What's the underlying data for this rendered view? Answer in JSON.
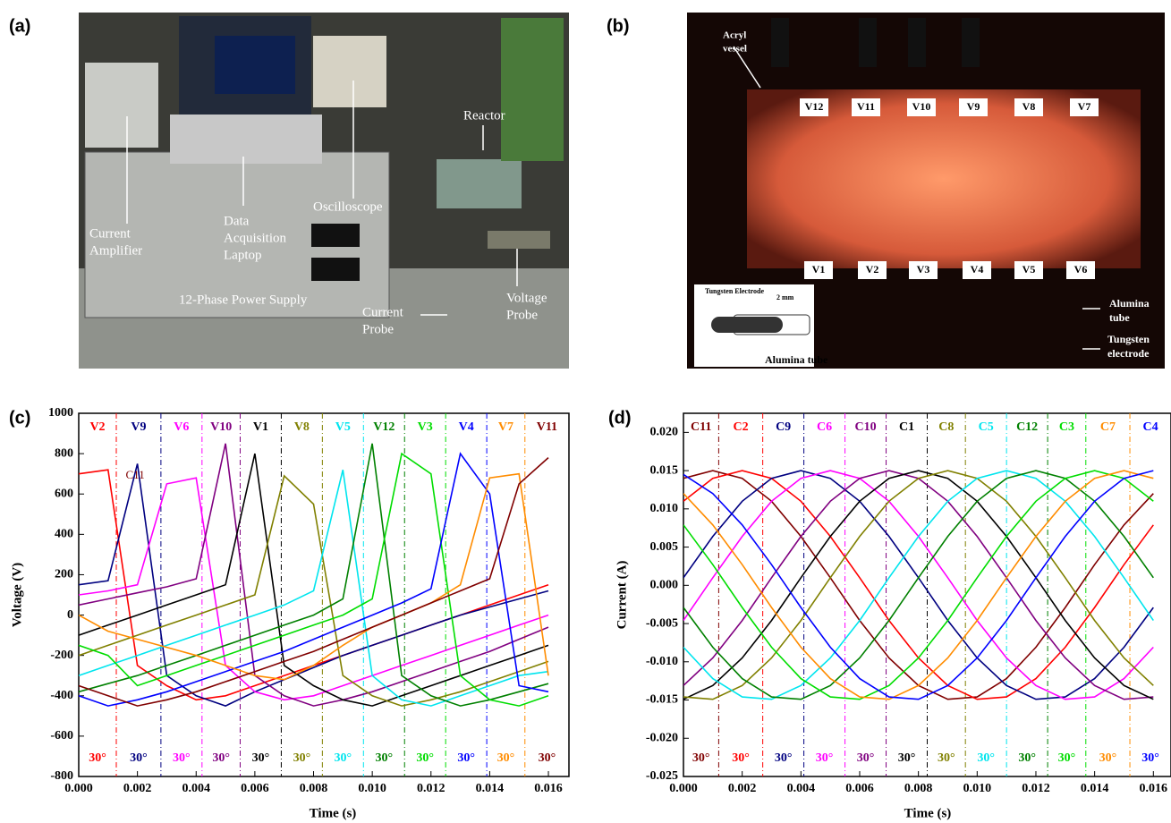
{
  "photos": [
    {
      "panel_label": "(a)",
      "annotations": [
        {
          "lines": [
            "Reactor"
          ]
        },
        {
          "lines": [
            "Oscilloscope"
          ]
        },
        {
          "lines": [
            "Current",
            "Amplifier"
          ]
        },
        {
          "lines": [
            "Data",
            "Acquisition",
            "Laptop"
          ]
        },
        {
          "lines": [
            "12-Phase Power Supply"
          ]
        },
        {
          "lines": [
            "Voltage",
            "Probe"
          ]
        },
        {
          "lines": [
            "Current",
            "Probe"
          ]
        }
      ]
    },
    {
      "panel_label": "(b)",
      "top_labels": [
        "V12",
        "V11",
        "V10",
        "V9",
        "V8",
        "V7"
      ],
      "bottom_labels": [
        "V1",
        "V2",
        "V3",
        "V4",
        "V5",
        "V6"
      ],
      "annotations": [
        {
          "lines": [
            "Acryl",
            "vessel"
          ]
        },
        {
          "lines": [
            "Tungsten Electrode"
          ]
        },
        {
          "lines": [
            "2 mm"
          ]
        },
        {
          "lines": [
            "Alumina tube"
          ]
        },
        {
          "lines": [
            "Alumina",
            "tube"
          ]
        },
        {
          "lines": [
            "Tungsten",
            "electrode"
          ]
        }
      ]
    }
  ],
  "chart_data": [
    {
      "type": "line",
      "panel_label": "(c)",
      "xlabel": "Time (s)",
      "ylabel": "Voltage (V)",
      "xlim": [
        0,
        0.0167
      ],
      "ylim": [
        -800,
        1000
      ],
      "xticks": [
        {
          "value": 0,
          "label": "0.000"
        },
        0.002,
        0.004,
        0.006,
        0.008,
        {
          "value": 0.01,
          "label": "0.010"
        },
        0.012,
        0.014,
        0.016
      ],
      "yticks": [
        -800,
        -600,
        -400,
        -200,
        0,
        200,
        400,
        600,
        800,
        1000
      ],
      "x": [
        0,
        0.001,
        0.002,
        0.003,
        0.004,
        0.005,
        0.006,
        0.007,
        0.008,
        0.009,
        0.01,
        0.011,
        0.012,
        0.013,
        0.014,
        0.015,
        0.016
      ],
      "phase_boundaries": [
        0.00128,
        0.0028,
        0.0042,
        0.0055,
        0.0069,
        0.0083,
        0.0097,
        0.0111,
        0.0125,
        0.0139,
        0.0152
      ],
      "phase_labels": [
        "30°",
        "30°",
        "30°",
        "30°",
        "30°",
        "30°",
        "30°",
        "30°",
        "30°",
        "30°",
        "30°",
        "30°"
      ],
      "annotations": [
        {
          "text": "C11",
          "x": 0.0016,
          "y": 690
        }
      ],
      "series": [
        {
          "name": "V2",
          "color": "#ff0000",
          "values": [
            700,
            720,
            -250,
            -350,
            -420,
            -400,
            -350,
            -300,
            -250,
            -200,
            -150,
            -100,
            -50,
            0,
            50,
            100,
            150
          ]
        },
        {
          "name": "V9",
          "color": "#000080",
          "values": [
            150,
            170,
            750,
            -300,
            -400,
            -450,
            -380,
            -320,
            -260,
            -200,
            -150,
            -100,
            -50,
            0,
            40,
            80,
            120
          ]
        },
        {
          "name": "V6",
          "color": "#ff00ff",
          "values": [
            100,
            120,
            150,
            650,
            680,
            -250,
            -380,
            -420,
            -400,
            -350,
            -300,
            -250,
            -200,
            -150,
            -100,
            -50,
            0
          ]
        },
        {
          "name": "V10",
          "color": "#800080",
          "values": [
            50,
            80,
            110,
            140,
            180,
            850,
            -300,
            -400,
            -450,
            -420,
            -380,
            -330,
            -280,
            -230,
            -180,
            -120,
            -60
          ]
        },
        {
          "name": "V1",
          "color": "#000000",
          "values": [
            -100,
            -50,
            0,
            50,
            100,
            150,
            800,
            -250,
            -350,
            -420,
            -450,
            -400,
            -350,
            -300,
            -250,
            -200,
            -150
          ]
        },
        {
          "name": "V8",
          "color": "#808000",
          "values": [
            -200,
            -150,
            -100,
            -50,
            0,
            50,
            100,
            690,
            550,
            -300,
            -400,
            -450,
            -420,
            -380,
            -330,
            -280,
            -230
          ]
        },
        {
          "name": "V5",
          "color": "#00e5ee",
          "values": [
            -300,
            -250,
            -200,
            -150,
            -100,
            -50,
            0,
            50,
            120,
            720,
            -300,
            -420,
            -450,
            -400,
            -350,
            -300,
            -280
          ]
        },
        {
          "name": "V12",
          "color": "#008000",
          "values": [
            -380,
            -340,
            -300,
            -250,
            -200,
            -150,
            -100,
            -50,
            0,
            80,
            850,
            -300,
            -400,
            -450,
            -420,
            -380,
            -340
          ]
        },
        {
          "name": "V3",
          "color": "#00dd00",
          "values": [
            -150,
            -200,
            -350,
            -300,
            -250,
            -200,
            -150,
            -100,
            -50,
            0,
            80,
            800,
            700,
            -300,
            -420,
            -450,
            -400
          ]
        },
        {
          "name": "V4",
          "color": "#0000ff",
          "values": [
            -400,
            -450,
            -420,
            -380,
            -330,
            -280,
            -230,
            -180,
            -120,
            -60,
            0,
            60,
            130,
            800,
            600,
            -350,
            -380
          ]
        },
        {
          "name": "V7",
          "color": "#ff8c00",
          "values": [
            0,
            -80,
            -120,
            -160,
            -200,
            -250,
            -300,
            -320,
            -250,
            -150,
            -60,
            0,
            60,
            150,
            680,
            700,
            -300
          ]
        },
        {
          "name": "V11",
          "color": "#800000",
          "values": [
            -350,
            -400,
            -450,
            -420,
            -380,
            -330,
            -280,
            -230,
            -180,
            -120,
            -60,
            0,
            60,
            120,
            180,
            650,
            780
          ]
        }
      ]
    },
    {
      "type": "line",
      "panel_label": "(d)",
      "xlabel": "Time (s)",
      "ylabel": "Current (A)",
      "xlim": [
        0,
        0.0166
      ],
      "ylim": [
        -0.025,
        0.0225
      ],
      "xticks": [
        {
          "value": 0,
          "label": "0.000"
        },
        0.002,
        0.004,
        0.006,
        0.008,
        {
          "value": 0.01,
          "label": "0.010"
        },
        0.012,
        0.014,
        0.016
      ],
      "yticks": [
        -0.025,
        {
          "value": -0.02,
          "label": "-0.020"
        },
        -0.015,
        {
          "value": -0.01,
          "label": "-0.010"
        },
        -0.005,
        {
          "value": 0,
          "label": "0.000"
        },
        0.005,
        {
          "value": 0.01,
          "label": "0.010"
        },
        0.015,
        {
          "value": 0.02,
          "label": "0.020"
        }
      ],
      "x": [
        0,
        0.001,
        0.002,
        0.003,
        0.004,
        0.005,
        0.006,
        0.007,
        0.008,
        0.009,
        0.01,
        0.011,
        0.012,
        0.013,
        0.014,
        0.015,
        0.016
      ],
      "phase_boundaries": [
        0.0012,
        0.0027,
        0.0041,
        0.0055,
        0.0069,
        0.0083,
        0.0096,
        0.011,
        0.0124,
        0.0137,
        0.0152
      ],
      "phase_labels": [
        "30°",
        "30°",
        "30°",
        "30°",
        "30°",
        "30°",
        "30°",
        "30°",
        "30°",
        "30°",
        "30°",
        "30°"
      ],
      "series": [
        {
          "name": "C11",
          "color": "#800000",
          "values": [
            0.014,
            0.015,
            0.014,
            0.011,
            0.0064,
            0.001,
            -0.0046,
            -0.0095,
            -0.0131,
            -0.0149,
            -0.0146,
            -0.0122,
            -0.0081,
            -0.0029,
            0.0027,
            0.0079,
            0.012
          ]
        },
        {
          "name": "C2",
          "color": "#ff0000",
          "values": [
            0.011,
            0.014,
            0.015,
            0.014,
            0.011,
            0.0064,
            0.001,
            -0.0046,
            -0.0095,
            -0.0131,
            -0.0149,
            -0.0146,
            -0.0122,
            -0.0081,
            -0.0029,
            0.0027,
            0.0079
          ]
        },
        {
          "name": "C9",
          "color": "#000080",
          "values": [
            0.001,
            0.0064,
            0.011,
            0.014,
            0.015,
            0.014,
            0.011,
            0.0064,
            0.001,
            -0.0046,
            -0.0095,
            -0.0131,
            -0.0149,
            -0.0146,
            -0.0122,
            -0.0081,
            -0.0029
          ]
        },
        {
          "name": "C6",
          "color": "#ff00ff",
          "values": [
            -0.0046,
            0.001,
            0.0064,
            0.011,
            0.014,
            0.015,
            0.014,
            0.011,
            0.0064,
            0.001,
            -0.0046,
            -0.0095,
            -0.0131,
            -0.0149,
            -0.0146,
            -0.0122,
            -0.0081
          ]
        },
        {
          "name": "C10",
          "color": "#800080",
          "values": [
            -0.0131,
            -0.0095,
            -0.0046,
            0.001,
            0.0064,
            0.011,
            0.014,
            0.015,
            0.014,
            0.011,
            0.0064,
            0.001,
            -0.0046,
            -0.0095,
            -0.0131,
            -0.0149,
            -0.0146
          ]
        },
        {
          "name": "C1",
          "color": "#000000",
          "values": [
            -0.0149,
            -0.0131,
            -0.0095,
            -0.0046,
            0.001,
            0.0064,
            0.011,
            0.014,
            0.015,
            0.014,
            0.011,
            0.0064,
            0.001,
            -0.0046,
            -0.0095,
            -0.0131,
            -0.0149
          ]
        },
        {
          "name": "C8",
          "color": "#808000",
          "values": [
            -0.0146,
            -0.0149,
            -0.0131,
            -0.0095,
            -0.0046,
            0.001,
            0.0064,
            0.011,
            0.014,
            0.015,
            0.014,
            0.011,
            0.0064,
            0.001,
            -0.0046,
            -0.0095,
            -0.0131
          ]
        },
        {
          "name": "C5",
          "color": "#00e5ee",
          "values": [
            -0.0081,
            -0.0122,
            -0.0146,
            -0.0149,
            -0.0131,
            -0.0095,
            -0.0046,
            0.001,
            0.0064,
            0.011,
            0.014,
            0.015,
            0.014,
            0.011,
            0.0064,
            0.001,
            -0.0046
          ]
        },
        {
          "name": "C12",
          "color": "#008000",
          "values": [
            -0.0029,
            -0.0081,
            -0.0122,
            -0.0146,
            -0.0149,
            -0.0131,
            -0.0095,
            -0.0046,
            0.001,
            0.0064,
            0.011,
            0.014,
            0.015,
            0.014,
            0.011,
            0.0064,
            0.001
          ]
        },
        {
          "name": "C3",
          "color": "#00dd00",
          "values": [
            0.0079,
            0.0027,
            -0.0029,
            -0.0081,
            -0.0122,
            -0.0146,
            -0.0149,
            -0.0131,
            -0.0095,
            -0.0046,
            0.001,
            0.0064,
            0.011,
            0.014,
            0.015,
            0.014,
            0.011
          ]
        },
        {
          "name": "C7",
          "color": "#ff8c00",
          "values": [
            0.012,
            0.0079,
            0.0027,
            -0.0029,
            -0.0081,
            -0.0122,
            -0.0146,
            -0.0149,
            -0.0131,
            -0.0095,
            -0.0046,
            0.001,
            0.0064,
            0.011,
            0.014,
            0.015,
            0.014
          ]
        },
        {
          "name": "C4",
          "color": "#0000ff",
          "values": [
            0.0145,
            0.012,
            0.0079,
            0.0027,
            -0.0029,
            -0.0081,
            -0.0122,
            -0.0146,
            -0.0149,
            -0.0131,
            -0.0095,
            -0.0046,
            0.001,
            0.0064,
            0.011,
            0.014,
            0.015
          ]
        }
      ]
    }
  ]
}
